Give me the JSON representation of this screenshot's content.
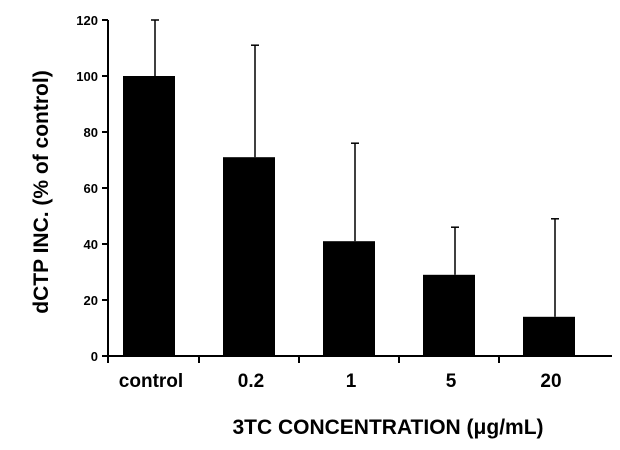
{
  "chart_data": {
    "type": "bar",
    "title": "",
    "xlabel": "3TC CONCENTRATION (μg/mL)",
    "ylabel": "dCTP INC.  (% of control)",
    "categories": [
      "control",
      "0.2",
      "1",
      "5",
      "20"
    ],
    "values": [
      100,
      71,
      41,
      29,
      14
    ],
    "error_upper": [
      120,
      111,
      76,
      46,
      49
    ],
    "ylim": [
      0,
      120
    ],
    "yticks": [
      0,
      20,
      40,
      60,
      80,
      100,
      120
    ],
    "grid": false,
    "legend": "none",
    "colors": {
      "bar": "#000000",
      "axis": "#000000",
      "background": "#ffffff"
    }
  }
}
